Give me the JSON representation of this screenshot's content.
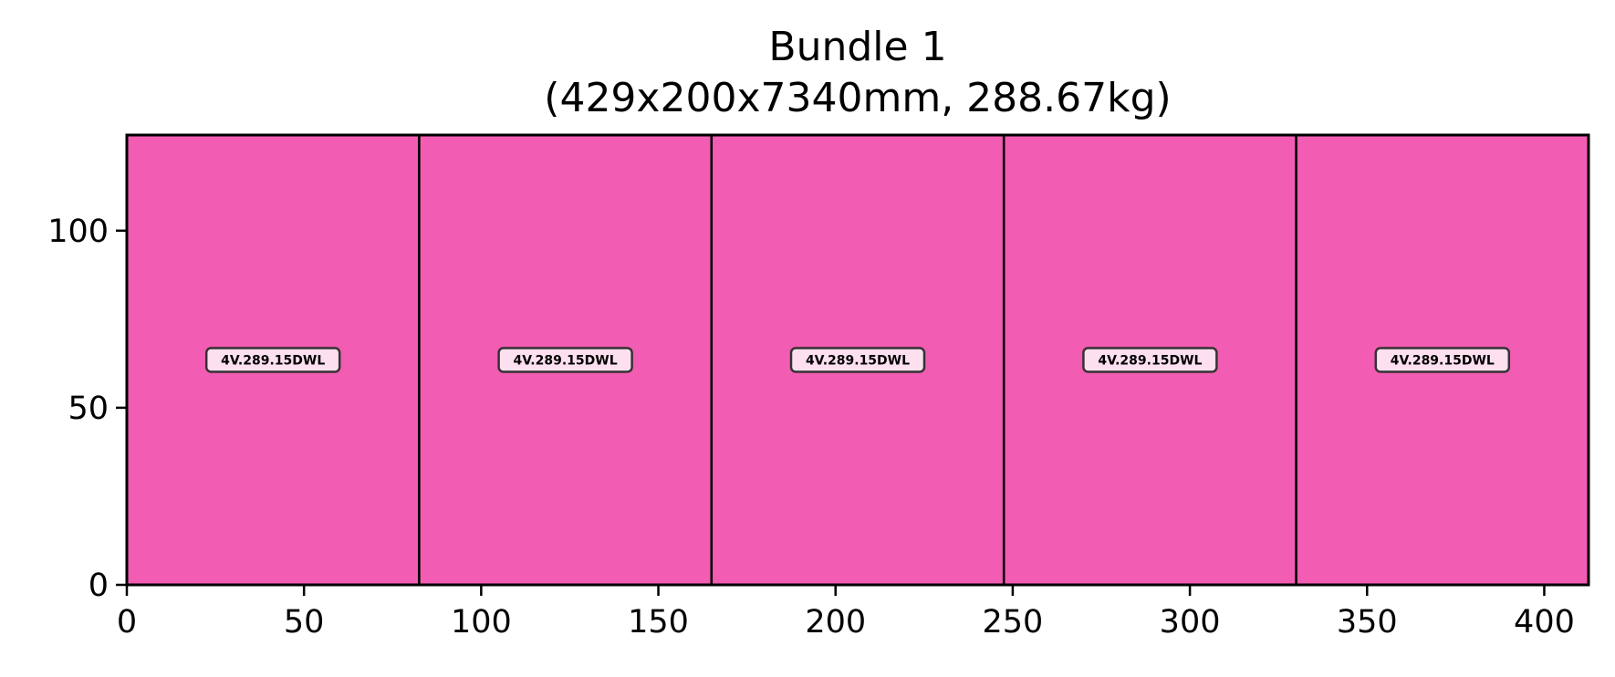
{
  "chart_data": {
    "type": "bar",
    "title_lines": [
      "Bundle 1",
      "(429x200x7340mm, 288.67kg)"
    ],
    "xlabel": "",
    "ylabel": "",
    "xlim": [
      0,
      412.5
    ],
    "ylim": [
      0,
      127
    ],
    "x_ticks": [
      0,
      50,
      100,
      150,
      200,
      250,
      300,
      350,
      400
    ],
    "y_ticks": [
      0,
      50,
      100
    ],
    "grid": false,
    "fill_color": "#f25cb3",
    "edge_color": "#000000",
    "label_box_color": "#fde0ef",
    "pieces": [
      {
        "label": "4V.289.15DWL",
        "x0": 0,
        "x1": 82.5,
        "y0": 0,
        "y1": 127
      },
      {
        "label": "4V.289.15DWL",
        "x0": 82.5,
        "x1": 165,
        "y0": 0,
        "y1": 127
      },
      {
        "label": "4V.289.15DWL",
        "x0": 165,
        "x1": 247.5,
        "y0": 0,
        "y1": 127
      },
      {
        "label": "4V.289.15DWL",
        "x0": 247.5,
        "x1": 330,
        "y0": 0,
        "y1": 127
      },
      {
        "label": "4V.289.15DWL",
        "x0": 330,
        "x1": 412.5,
        "y0": 0,
        "y1": 127
      }
    ]
  }
}
